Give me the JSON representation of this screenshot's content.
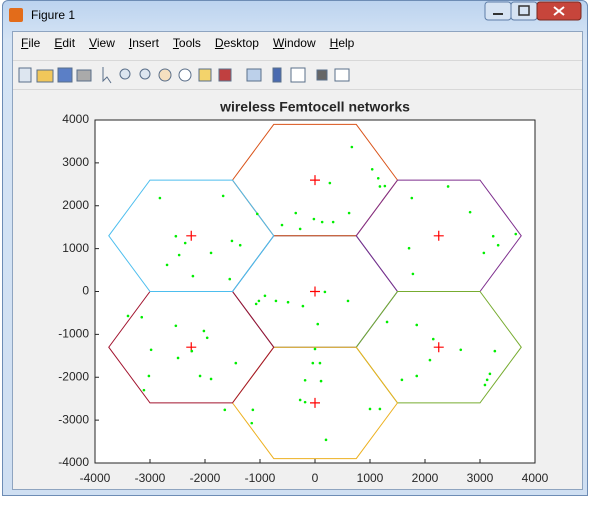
{
  "window": {
    "title": "Figure 1"
  },
  "menu": [
    "File",
    "Edit",
    "View",
    "Insert",
    "Tools",
    "Desktop",
    "Window",
    "Help"
  ],
  "chart_data": {
    "type": "scatter",
    "title": "wireless Femtocell networks",
    "xlim": [
      -4000,
      4000
    ],
    "ylim": [
      -4000,
      4000
    ],
    "xticks": [
      -4000,
      -3000,
      -2000,
      -1000,
      0,
      1000,
      2000,
      3000,
      4000
    ],
    "yticks": [
      -4000,
      -3000,
      -2000,
      -1000,
      0,
      1000,
      2000,
      3000,
      4000
    ],
    "grid": false,
    "cell_radius": 1500,
    "cell_colors": [
      "#2b4a8a",
      "#d95319",
      "#7e2f8e",
      "#77ac30",
      "#edb120",
      "#a2142f",
      "#4dbeee"
    ],
    "series": [
      {
        "color": "#ff0000",
        "marker": "plus",
        "x": [
          0,
          0,
          2250,
          2250,
          0,
          -2250,
          -2250
        ],
        "y": [
          0,
          2598,
          1299,
          -1299,
          -2598,
          -1299,
          1299
        ]
      },
      {
        "color": "#00ee00",
        "marker": "dot",
        "x": [
          670,
          270,
          1040,
          1150,
          1180,
          620,
          330,
          130,
          -20,
          -270,
          -350,
          -600,
          2420,
          1760,
          2820,
          3240,
          3330,
          3070,
          3650,
          1710,
          1780,
          1270,
          -2820,
          -1670,
          -1050,
          -2530,
          -2360,
          -1510,
          -1360,
          -2470,
          -1890,
          -2690,
          -2220,
          -1550,
          -910,
          -1020,
          -1070,
          -710,
          -490,
          180,
          600,
          50,
          -220,
          1310,
          1850,
          2150,
          2650,
          3270,
          2090,
          1580,
          1850,
          3130,
          3180,
          3090,
          0,
          -40,
          90,
          110,
          -180,
          -180,
          -1640,
          -1130,
          -1150,
          200,
          1000,
          1180,
          -270,
          -3400,
          -3150,
          -2530,
          -2020,
          -1960,
          -2980,
          -2490,
          -2240,
          -2090,
          -1890,
          -3020,
          -3110,
          -1440
        ],
        "y": [
          3370,
          2530,
          2850,
          2640,
          2450,
          1830,
          1620,
          1620,
          1690,
          1460,
          1830,
          1550,
          2450,
          2180,
          1850,
          1290,
          1080,
          900,
          1340,
          1010,
          410,
          2460,
          2180,
          2230,
          1810,
          1290,
          1130,
          1180,
          1080,
          850,
          900,
          620,
          360,
          290,
          -100,
          -220,
          -290,
          -220,
          -250,
          -10,
          -220,
          -760,
          -340,
          -710,
          -780,
          -1110,
          -1360,
          -1390,
          -1600,
          -2060,
          -1970,
          -2060,
          -1920,
          -2180,
          -1340,
          -1670,
          -1670,
          -2090,
          -2070,
          -2580,
          -2760,
          -2760,
          -3070,
          -3460,
          -2740,
          -2740,
          -2530,
          -570,
          -600,
          -800,
          -920,
          -1080,
          -1360,
          -1550,
          -1390,
          -1970,
          -2040,
          -1970,
          -2300,
          -1670
        ]
      }
    ]
  }
}
